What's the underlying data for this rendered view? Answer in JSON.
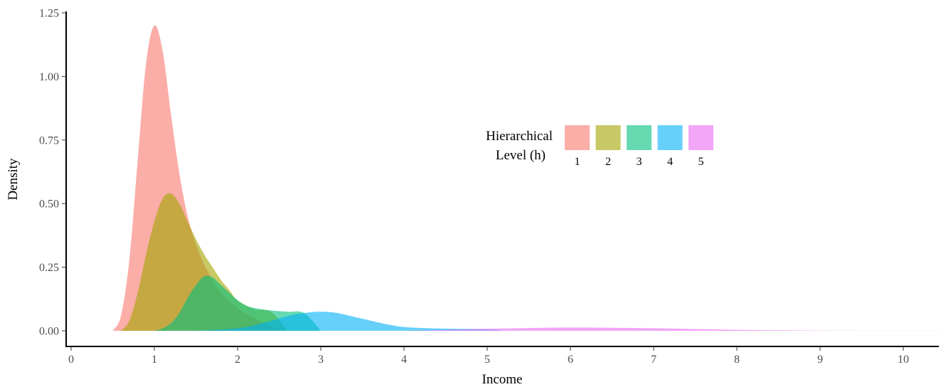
{
  "chart_data": {
    "type": "area",
    "subtype": "density",
    "xlabel": "Income",
    "ylabel": "Density",
    "xlim": [
      -0.1,
      10.5
    ],
    "ylim": [
      -0.04,
      1.27
    ],
    "x_ticks": [
      0,
      1,
      2,
      3,
      4,
      5,
      6,
      7,
      8,
      9,
      10
    ],
    "x_tick_labels": [
      "0",
      "1",
      "2",
      "3",
      "4",
      "5",
      "6",
      "7",
      "8",
      "9",
      "10"
    ],
    "y_ticks": [
      0,
      0.25,
      0.5,
      0.75,
      1.0,
      1.25
    ],
    "y_tick_labels": [
      "0.00",
      "0.25",
      "0.50",
      "0.75",
      "1.00",
      "1.25"
    ],
    "grid": false,
    "legend": {
      "title_lines": [
        "Hierarchical",
        "Level (h)"
      ],
      "position": "top-center",
      "orientation": "horizontal"
    },
    "series": [
      {
        "name": "1",
        "color": "#F8766D",
        "x": [
          0.5,
          0.6,
          0.7,
          0.8,
          0.9,
          1.0,
          1.1,
          1.2,
          1.3,
          1.4,
          1.5,
          1.6,
          1.7,
          1.8,
          2.0,
          2.2,
          2.5
        ],
        "values": [
          0.0,
          0.06,
          0.28,
          0.67,
          1.05,
          1.2,
          1.1,
          0.85,
          0.62,
          0.45,
          0.34,
          0.26,
          0.2,
          0.15,
          0.09,
          0.05,
          0.0
        ]
      },
      {
        "name": "2",
        "color": "#A3A500",
        "x": [
          0.6,
          0.7,
          0.8,
          0.9,
          1.0,
          1.1,
          1.2,
          1.3,
          1.4,
          1.5,
          1.6,
          1.7,
          1.8,
          1.9,
          2.0,
          2.2,
          2.4,
          2.6
        ],
        "values": [
          0.0,
          0.04,
          0.15,
          0.3,
          0.43,
          0.52,
          0.54,
          0.5,
          0.43,
          0.36,
          0.3,
          0.25,
          0.2,
          0.16,
          0.12,
          0.085,
          0.075,
          0.0
        ]
      },
      {
        "name": "3",
        "color": "#00BF7D",
        "x": [
          1.0,
          1.1,
          1.2,
          1.3,
          1.4,
          1.5,
          1.6,
          1.7,
          1.8,
          1.9,
          2.0,
          2.1,
          2.2,
          2.4,
          2.6,
          2.8,
          3.0
        ],
        "values": [
          0.0,
          0.01,
          0.03,
          0.07,
          0.13,
          0.18,
          0.215,
          0.21,
          0.18,
          0.15,
          0.12,
          0.1,
          0.09,
          0.08,
          0.075,
          0.07,
          0.0
        ]
      },
      {
        "name": "4",
        "color": "#00B0F6",
        "x": [
          1.5,
          2.0,
          2.3,
          2.6,
          2.8,
          3.0,
          3.2,
          3.4,
          3.6,
          3.8,
          4.0,
          4.3,
          4.6,
          5.0,
          5.2
        ],
        "values": [
          0.0,
          0.01,
          0.03,
          0.058,
          0.07,
          0.075,
          0.07,
          0.055,
          0.04,
          0.025,
          0.015,
          0.01,
          0.008,
          0.006,
          0.0
        ]
      },
      {
        "name": "5",
        "color": "#E76BF3",
        "x": [
          4.0,
          4.5,
          5.0,
          5.5,
          6.0,
          6.5,
          7.0,
          7.5,
          8.0,
          8.5,
          9.0,
          9.5,
          10.0,
          10.5
        ],
        "values": [
          0.0,
          0.004,
          0.008,
          0.011,
          0.013,
          0.012,
          0.01,
          0.007,
          0.004,
          0.002,
          0.001,
          0.0005,
          0.0002,
          0.0
        ]
      }
    ]
  }
}
